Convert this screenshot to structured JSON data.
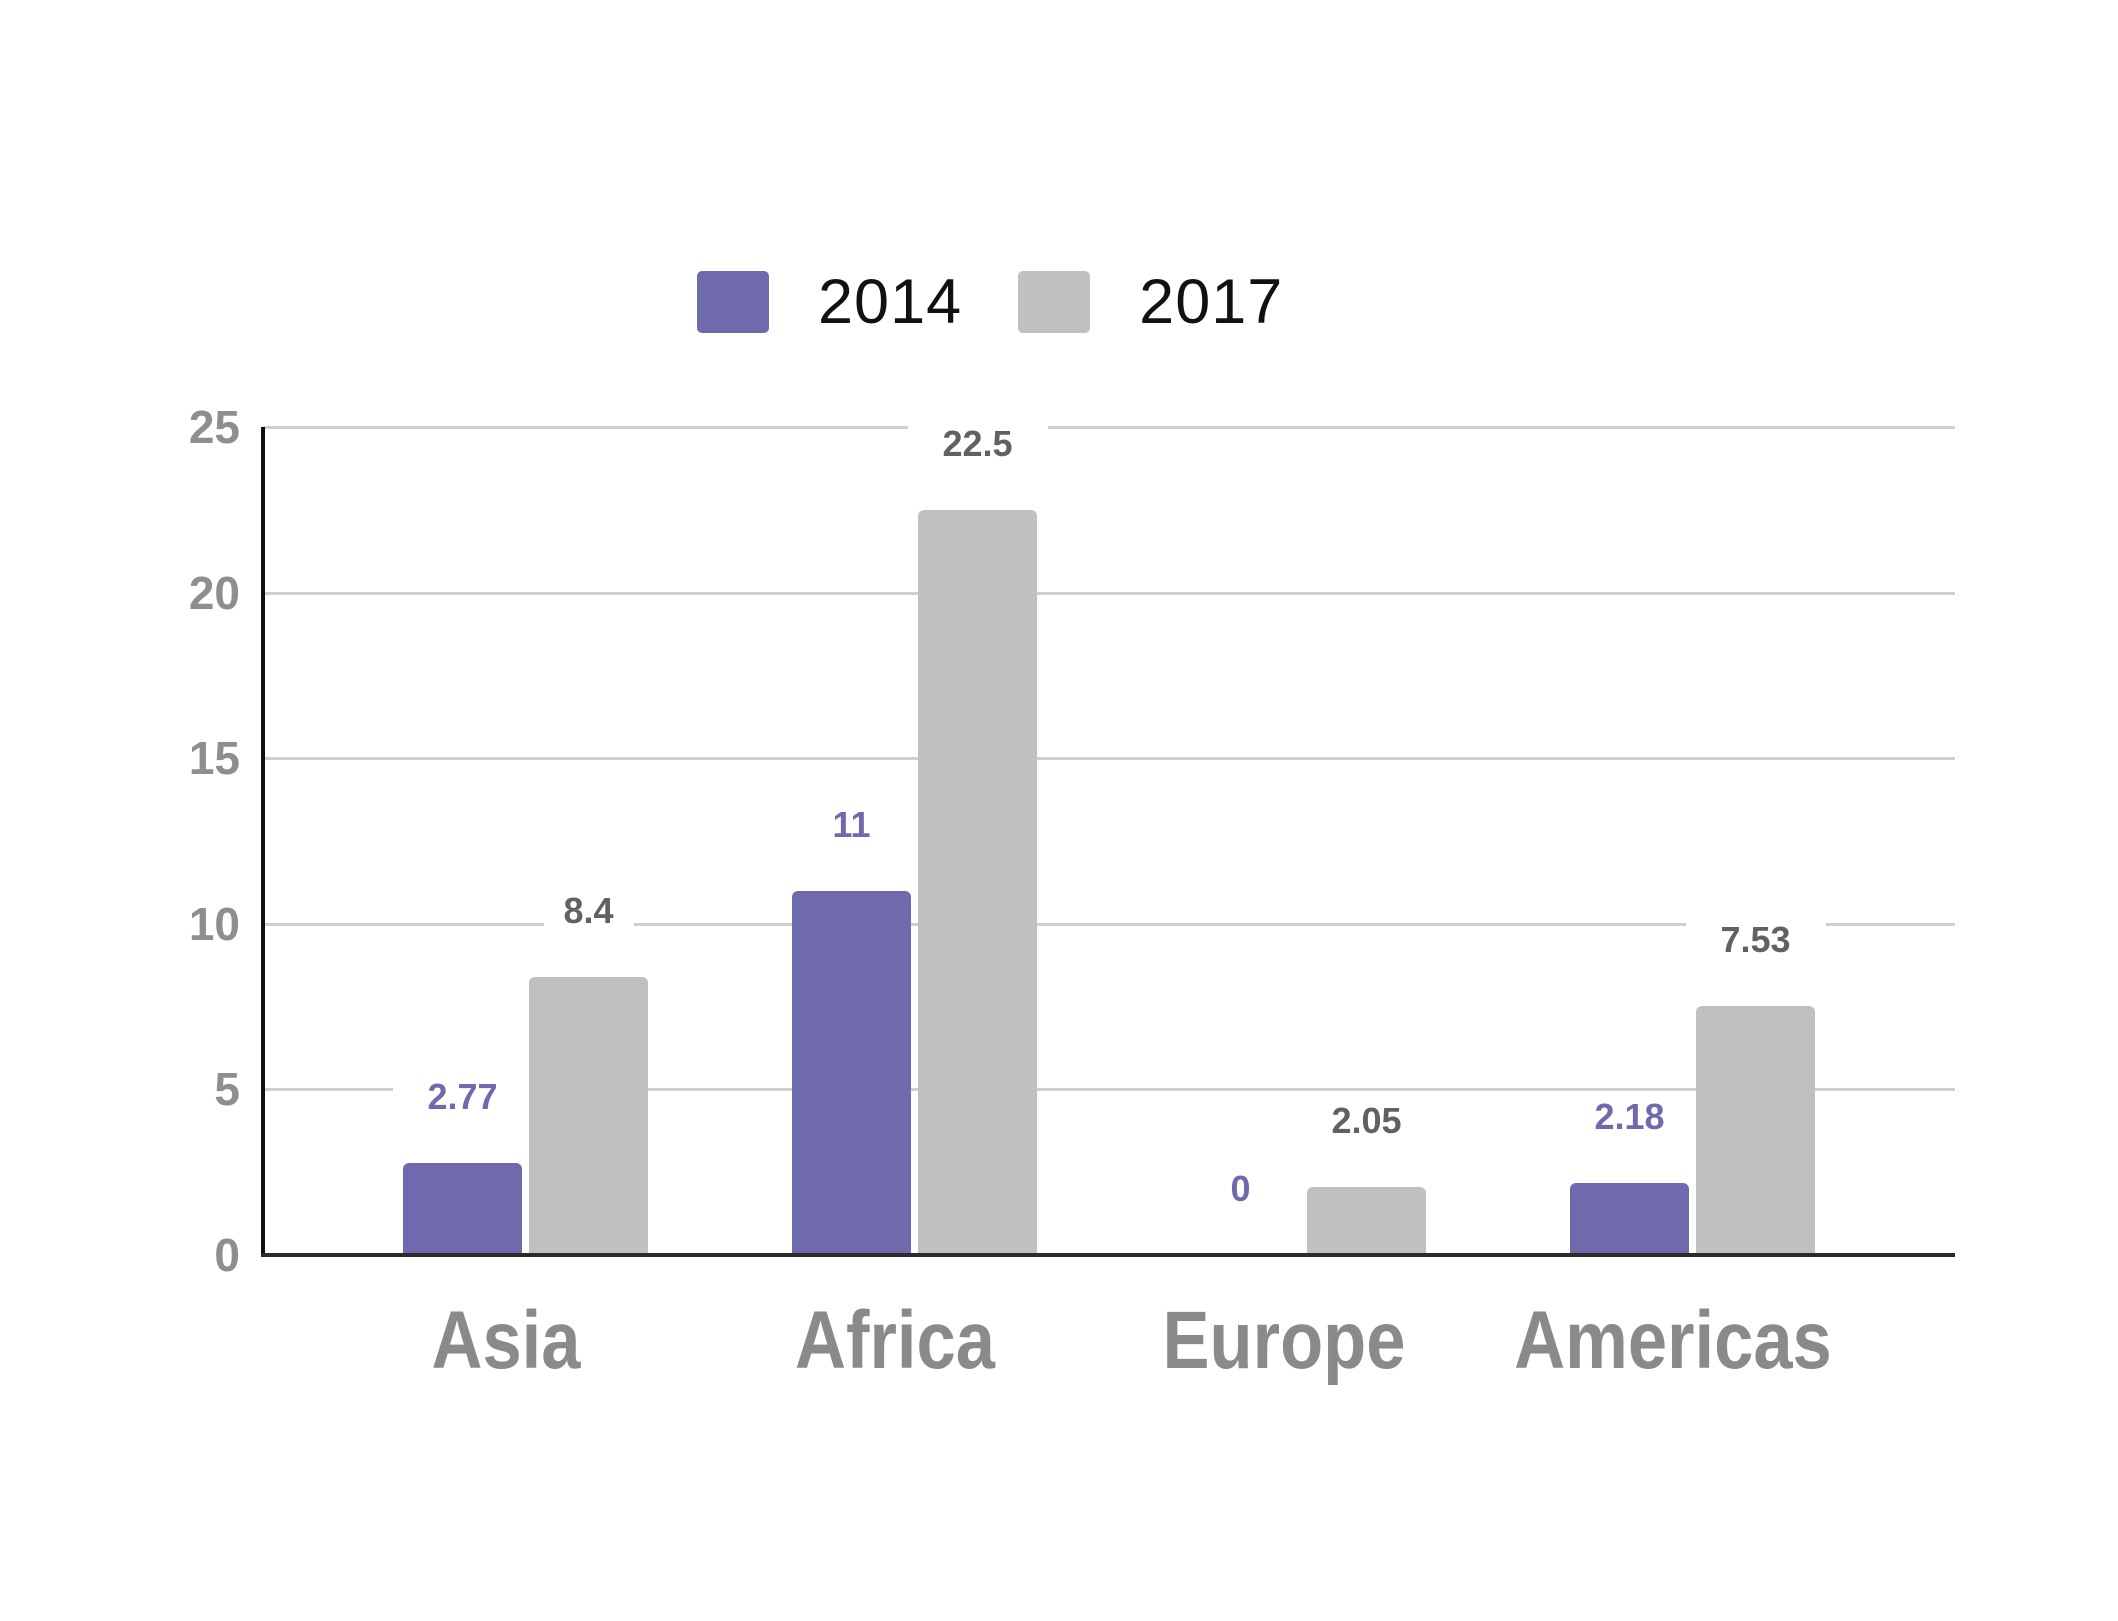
{
  "chart_data": {
    "type": "bar",
    "title": "",
    "xlabel": "",
    "ylabel": "",
    "categories": [
      "Asia",
      "Africa",
      "Europe",
      "Americas"
    ],
    "series": [
      {
        "name": "2014",
        "color": "#6f6aad",
        "label_color": "#6f6aad",
        "values": [
          2.77,
          11,
          0,
          2.18
        ],
        "labels": [
          "2.77",
          "11",
          "0",
          "2.18"
        ]
      },
      {
        "name": "2017",
        "color": "#c0c0c0",
        "label_color": "#616161",
        "values": [
          8.4,
          22.5,
          2.05,
          7.53
        ],
        "labels": [
          "8.4",
          "22.5",
          "2.05",
          "7.53"
        ]
      }
    ],
    "ylim": [
      0,
      25
    ],
    "yticks": [
      0,
      5,
      10,
      15,
      20,
      25
    ],
    "ytick_labels": [
      "0",
      "5",
      "10",
      "15",
      "20",
      "25"
    ],
    "grid": true,
    "legend_position": "top",
    "data_labels": true
  },
  "legend": {
    "items": [
      {
        "label": "2014",
        "color": "#6f6aad"
      },
      {
        "label": "2017",
        "color": "#c0c0c0"
      }
    ]
  },
  "axis": {
    "y_labels": [
      "25",
      "20",
      "15",
      "10",
      "5",
      "0"
    ]
  },
  "categories": {
    "labels": [
      "Asia",
      "Africa",
      "Europe",
      "Americas"
    ]
  }
}
